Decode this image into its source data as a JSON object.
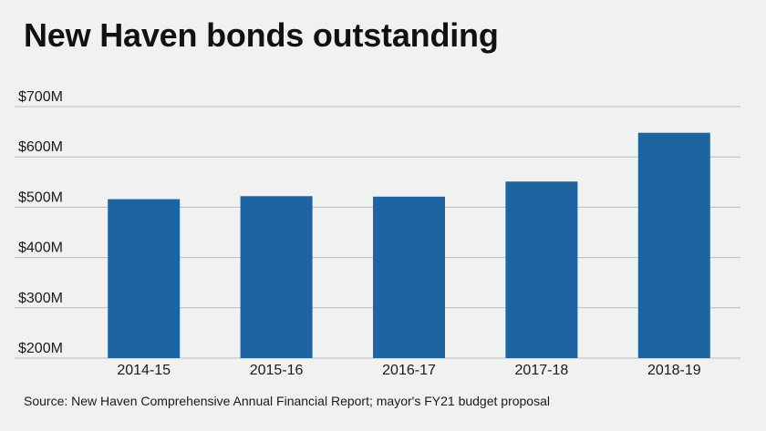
{
  "title": "New Haven bonds outstanding",
  "source": "Source: New Haven Comprehensive Annual Financial Report; mayor's FY21 budget proposal",
  "colors": {
    "bar": "#1e64a0",
    "grid": "#b9bcbe",
    "background": "#f0f1f1"
  },
  "chart_data": {
    "type": "bar",
    "title": "New Haven bonds outstanding",
    "categories": [
      "2014-15",
      "2015-16",
      "2016-17",
      "2017-18",
      "2018-19"
    ],
    "values": [
      516,
      522,
      521,
      551,
      648
    ],
    "unit": "$M",
    "ylim": [
      200,
      700
    ],
    "yticks": [
      200,
      300,
      400,
      500,
      600,
      700
    ],
    "ytick_labels": [
      "$200M",
      "$300M",
      "$400M",
      "$500M",
      "$600M",
      "$700M"
    ],
    "xlabel": "",
    "ylabel": "",
    "grid": true,
    "legend": "none"
  }
}
